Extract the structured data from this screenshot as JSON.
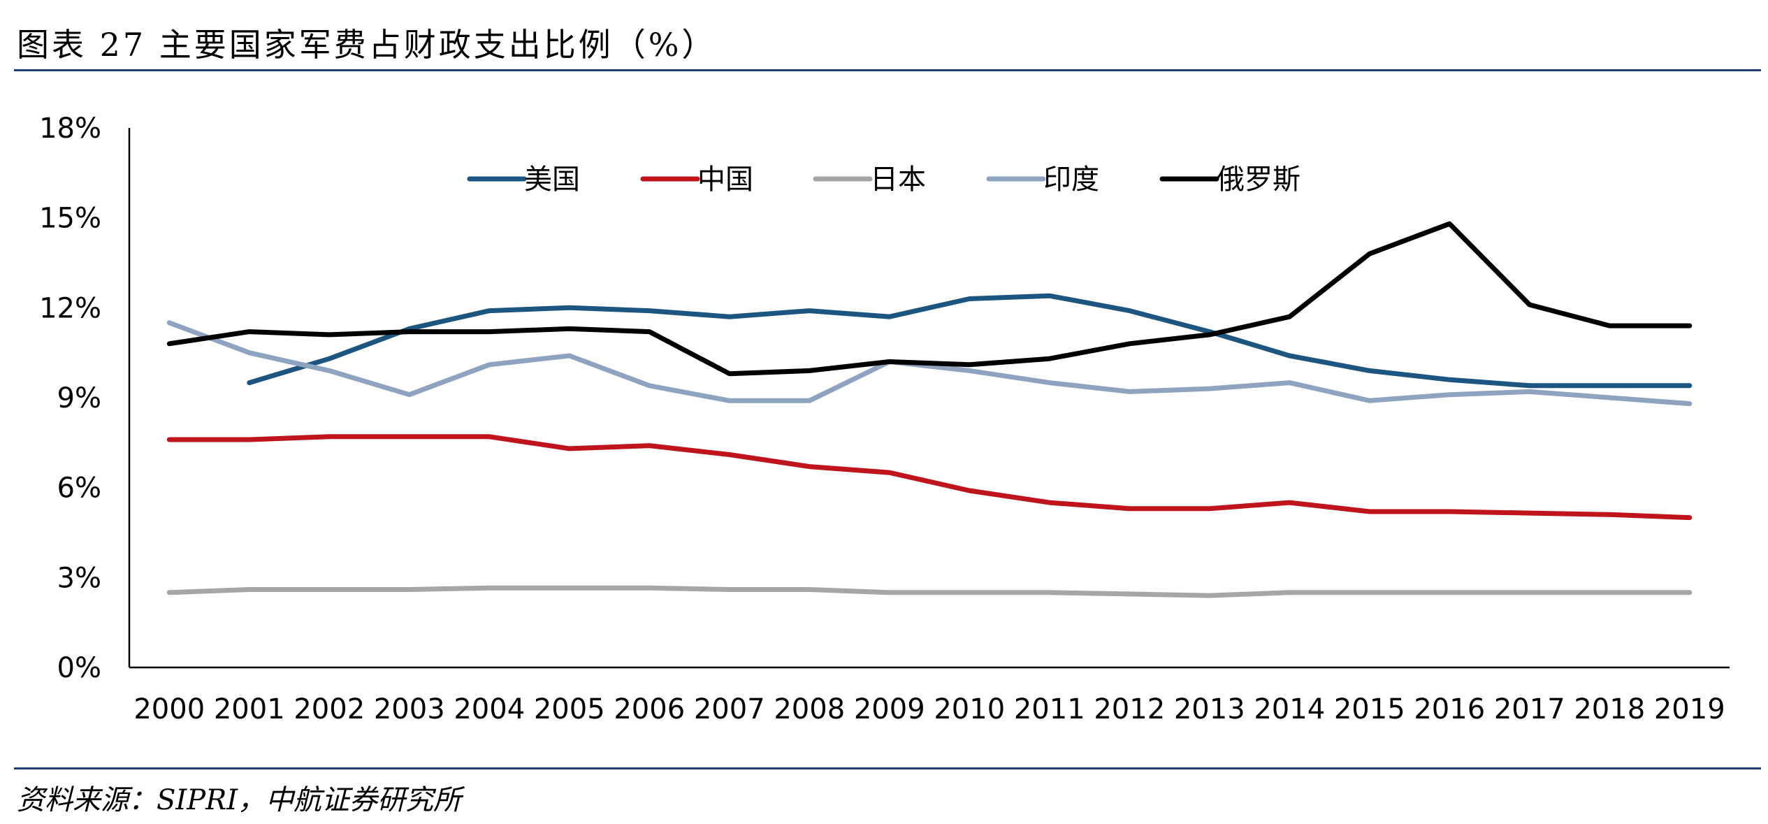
{
  "figure": {
    "title": "图表 27 主要国家军费占财政支出比例（%）",
    "source": "资料来源：SIPRI，中航证券研究所"
  },
  "chart_data": {
    "type": "line",
    "title": "",
    "xlabel": "",
    "ylabel": "",
    "categories": [
      "2000",
      "2001",
      "2002",
      "2003",
      "2004",
      "2005",
      "2006",
      "2007",
      "2008",
      "2009",
      "2010",
      "2011",
      "2012",
      "2013",
      "2014",
      "2015",
      "2016",
      "2017",
      "2018",
      "2019"
    ],
    "ylim": [
      0,
      18
    ],
    "yticks": [
      0,
      3,
      6,
      9,
      12,
      15,
      18
    ],
    "ytick_labels": [
      "0%",
      "3%",
      "6%",
      "9%",
      "12%",
      "15%",
      "18%"
    ],
    "grid": false,
    "legend_position": "top-center",
    "series": [
      {
        "name": "美国",
        "color": "#1b5580",
        "values": [
          null,
          9.5,
          10.3,
          11.3,
          11.9,
          12.0,
          11.9,
          11.7,
          11.9,
          11.7,
          12.3,
          12.4,
          11.9,
          11.2,
          10.4,
          9.9,
          9.6,
          9.4,
          9.4,
          9.4
        ]
      },
      {
        "name": "中国",
        "color": "#c0141c",
        "values": [
          7.6,
          7.6,
          7.7,
          7.7,
          7.7,
          7.3,
          7.4,
          7.1,
          6.7,
          6.5,
          5.9,
          5.5,
          5.3,
          5.3,
          5.5,
          5.2,
          5.2,
          5.15,
          5.1,
          5.0
        ]
      },
      {
        "name": "日本",
        "color": "#a6a6a6",
        "values": [
          2.5,
          2.6,
          2.6,
          2.6,
          2.65,
          2.65,
          2.65,
          2.6,
          2.6,
          2.5,
          2.5,
          2.5,
          2.45,
          2.4,
          2.5,
          2.5,
          2.5,
          2.5,
          2.5,
          2.5
        ]
      },
      {
        "name": "印度",
        "color": "#8ea3bf",
        "values": [
          11.5,
          10.5,
          9.9,
          9.1,
          10.1,
          10.4,
          9.4,
          8.9,
          8.9,
          10.2,
          9.9,
          9.5,
          9.2,
          9.3,
          9.5,
          8.9,
          9.1,
          9.2,
          9.0,
          8.8
        ]
      },
      {
        "name": "俄罗斯",
        "color": "#000000",
        "values": [
          10.8,
          11.2,
          11.1,
          11.2,
          11.2,
          11.3,
          11.2,
          9.8,
          9.9,
          10.2,
          10.1,
          10.3,
          10.8,
          11.1,
          11.7,
          13.8,
          14.8,
          12.1,
          11.4,
          11.4
        ]
      }
    ]
  }
}
